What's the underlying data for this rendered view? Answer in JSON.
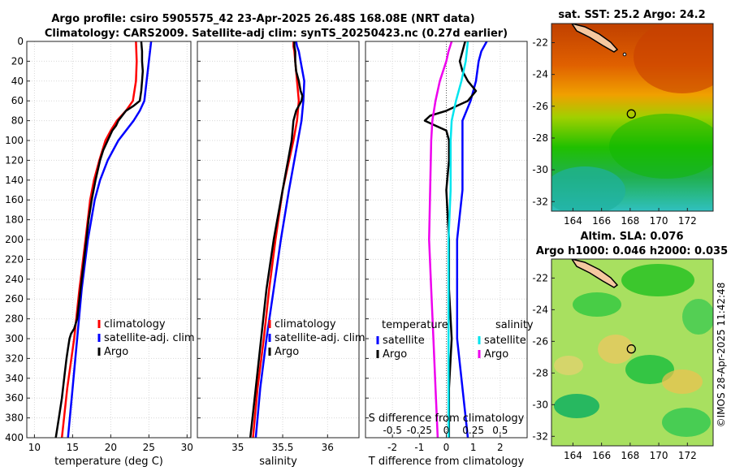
{
  "title": {
    "line1": "Argo profile: csiro 5905575_42 23-Apr-2025 26.48S 168.08E (NRT data)",
    "line2": "Climatology: CARS2009. Satellite-adj clim: synTS_20250423.nc (0.27d earlier)"
  },
  "watermark": "©IMOS 28-Apr-2025 11:42:48",
  "colors": {
    "climatology": "#ff0000",
    "satellite_clim": "#0000ff",
    "argo": "#000000",
    "satellite_s": "#00e5ee",
    "argo_s": "#ee00ee"
  },
  "chart_data": [
    {
      "id": "temperature",
      "type": "line",
      "xlabel": "temperature (deg C)",
      "ylabel": "",
      "xlim": [
        9,
        30.5
      ],
      "ylim": [
        0,
        400
      ],
      "xticks": [
        10,
        15,
        20,
        25,
        30
      ],
      "yticks": [
        0,
        20,
        40,
        60,
        80,
        100,
        120,
        140,
        160,
        180,
        200,
        220,
        240,
        260,
        280,
        300,
        320,
        340,
        360,
        380,
        400
      ],
      "legend": [
        "climatology",
        "satellite-adj. clim",
        "Argo"
      ],
      "series": [
        {
          "name": "climatology",
          "depth": [
            0,
            20,
            40,
            60,
            70,
            80,
            90,
            100,
            120,
            140,
            160,
            200,
            250,
            300,
            350,
            400
          ],
          "values": [
            23.3,
            23.4,
            23.3,
            22.9,
            22.0,
            20.8,
            20.0,
            19.3,
            18.5,
            17.8,
            17.3,
            16.7,
            15.9,
            15.2,
            14.3,
            13.6
          ]
        },
        {
          "name": "satellite-adj. clim",
          "depth": [
            0,
            20,
            40,
            60,
            70,
            80,
            90,
            100,
            120,
            140,
            160,
            200,
            250,
            300,
            350,
            400
          ],
          "values": [
            25.3,
            25.0,
            24.7,
            24.4,
            23.8,
            23.0,
            22.0,
            21.0,
            19.6,
            18.6,
            17.9,
            17.0,
            16.2,
            15.6,
            15.0,
            14.4
          ]
        },
        {
          "name": "Argo",
          "depth": [
            0,
            10,
            20,
            30,
            40,
            50,
            60,
            65,
            70,
            75,
            80,
            85,
            90,
            100,
            110,
            120,
            140,
            160,
            180,
            200,
            220,
            240,
            260,
            280,
            290,
            295,
            300,
            310,
            320,
            340,
            360,
            380,
            400
          ],
          "values": [
            24.0,
            24.1,
            24.1,
            24.2,
            24.1,
            24.0,
            23.8,
            23.0,
            22.0,
            21.5,
            21.0,
            20.7,
            20.2,
            19.6,
            19.0,
            18.6,
            18.0,
            17.5,
            17.1,
            16.8,
            16.5,
            16.2,
            15.9,
            15.6,
            15.2,
            14.8,
            14.6,
            14.4,
            14.2,
            13.9,
            13.6,
            13.2,
            12.8
          ]
        }
      ]
    },
    {
      "id": "salinity",
      "type": "line",
      "xlabel": "salinity",
      "ylabel": "",
      "xlim": [
        34.55,
        36.35
      ],
      "ylim": [
        0,
        400
      ],
      "xticks": [
        35,
        35.5,
        36
      ],
      "legend": [
        "climatology",
        "satellite-adj. clim",
        "Argo"
      ],
      "series": [
        {
          "name": "climatology",
          "depth": [
            0,
            5,
            10,
            20,
            40,
            60,
            80,
            100,
            150,
            200,
            250,
            300,
            350,
            400
          ],
          "values": [
            35.62,
            35.62,
            35.63,
            35.64,
            35.66,
            35.68,
            35.66,
            35.62,
            35.5,
            35.42,
            35.35,
            35.29,
            35.22,
            35.17
          ]
        },
        {
          "name": "satellite-adj. clim",
          "depth": [
            0,
            5,
            10,
            20,
            40,
            60,
            80,
            100,
            150,
            200,
            250,
            300,
            350,
            400
          ],
          "values": [
            35.65,
            35.66,
            35.68,
            35.7,
            35.74,
            35.73,
            35.71,
            35.67,
            35.57,
            35.48,
            35.4,
            35.32,
            35.25,
            35.2
          ]
        },
        {
          "name": "Argo",
          "depth": [
            0,
            5,
            10,
            20,
            30,
            40,
            50,
            55,
            60,
            65,
            70,
            80,
            90,
            100,
            110,
            120,
            130,
            150,
            200,
            250,
            300,
            350,
            400
          ],
          "values": [
            35.63,
            35.63,
            35.64,
            35.64,
            35.65,
            35.68,
            35.7,
            35.72,
            35.71,
            35.68,
            35.65,
            35.62,
            35.61,
            35.6,
            35.58,
            35.56,
            35.54,
            35.5,
            35.4,
            35.32,
            35.26,
            35.2,
            35.14
          ]
        }
      ]
    },
    {
      "id": "differences",
      "type": "line",
      "xlabel": "T difference from climatology",
      "toplabel": "S difference from climatology",
      "xlim": [
        -3.0,
        3.0
      ],
      "ylim": [
        0,
        400
      ],
      "xticks": [
        -2,
        -1,
        0,
        1,
        2
      ],
      "xticklabels": [
        "-2",
        "-1",
        "0",
        "1",
        "2"
      ],
      "sticks": [
        -0.5,
        -0.25,
        0,
        0.25,
        0.5
      ],
      "sticklabels": [
        "-0.5",
        "-0.25",
        "0",
        "0.25",
        "0.5"
      ],
      "legend_t": {
        "title": "temperature",
        "items": [
          "satellite",
          "Argo"
        ]
      },
      "legend_s": {
        "title": "salinity",
        "items": [
          "satellite",
          "Argo"
        ]
      },
      "series": [
        {
          "name": "T satellite",
          "depth": [
            0,
            10,
            20,
            40,
            60,
            80,
            100,
            150,
            200,
            250,
            300,
            350,
            400
          ],
          "values": [
            1.5,
            1.3,
            1.2,
            1.1,
            0.9,
            0.6,
            0.6,
            0.6,
            0.4,
            0.4,
            0.4,
            0.6,
            0.8
          ]
        },
        {
          "name": "T Argo",
          "depth": [
            0,
            10,
            20,
            30,
            40,
            50,
            60,
            65,
            70,
            75,
            80,
            85,
            90,
            100,
            120,
            150,
            200,
            250,
            300,
            350,
            400
          ],
          "values": [
            0.7,
            0.6,
            0.5,
            0.6,
            0.8,
            1.1,
            0.8,
            0.4,
            0.0,
            -0.6,
            -0.8,
            -0.4,
            0.0,
            0.1,
            0.1,
            0.0,
            0.1,
            0.1,
            0.2,
            0.1,
            0.1
          ]
        },
        {
          "name": "S satellite",
          "depth": [
            0,
            10,
            20,
            40,
            60,
            80,
            100,
            150,
            200,
            250,
            300,
            350,
            400
          ],
          "values": [
            0.2,
            0.19,
            0.18,
            0.14,
            0.09,
            0.05,
            0.04,
            0.04,
            0.02,
            0.02,
            0.02,
            0.02,
            0.02
          ]
        },
        {
          "name": "S Argo",
          "depth": [
            0,
            10,
            20,
            40,
            60,
            80,
            100,
            150,
            200,
            250,
            300,
            350,
            400
          ],
          "values": [
            0.05,
            0.02,
            0.0,
            -0.06,
            -0.1,
            -0.13,
            -0.14,
            -0.15,
            -0.16,
            -0.14,
            -0.12,
            -0.1,
            -0.08
          ]
        }
      ]
    },
    {
      "id": "sst_map",
      "type": "heatmap",
      "title": "sat. SST: 25.2 Argo: 24.2",
      "xlim": [
        162.5,
        173.8
      ],
      "ylim": [
        -32.6,
        -20.8
      ],
      "xticks": [
        164,
        166,
        168,
        170,
        172
      ],
      "yticks": [
        -22,
        -24,
        -26,
        -28,
        -30,
        -32
      ],
      "float_position": {
        "lon": 168.08,
        "lat": -26.48
      }
    },
    {
      "id": "sla_map",
      "type": "heatmap",
      "title": "Altim. SLA: 0.076",
      "subtitle": "Argo h1000: 0.046 h2000: 0.035",
      "xlim": [
        162.5,
        173.8
      ],
      "ylim": [
        -32.6,
        -20.8
      ],
      "xticks": [
        164,
        166,
        168,
        170,
        172
      ],
      "yticks": [
        -22,
        -24,
        -26,
        -28,
        -30,
        -32
      ],
      "float_position": {
        "lon": 168.08,
        "lat": -26.48
      }
    }
  ]
}
